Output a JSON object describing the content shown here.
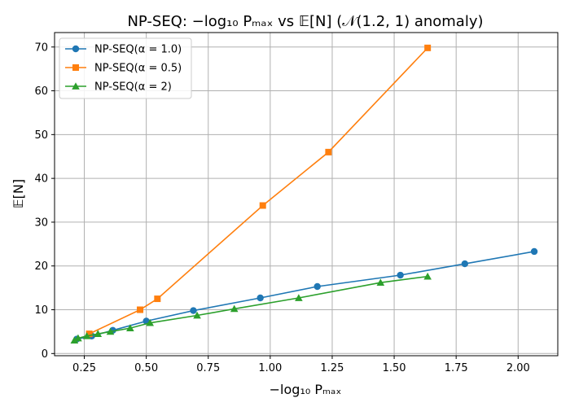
{
  "chart_data": {
    "type": "line",
    "title": "NP-SEQ: −log₁₀ Pₘₐₓ vs 𝔼[N] (𝒩(1.2, 1) anomaly)",
    "xlabel": "−log₁₀ Pₘₐₓ",
    "ylabel": "𝔼[N]",
    "xlim": [
      0.13,
      2.16
    ],
    "ylim": [
      -0.5,
      73.3
    ],
    "xticks": [
      0.25,
      0.5,
      0.75,
      1.0,
      1.25,
      1.5,
      1.75,
      2.0
    ],
    "xtick_labels": [
      "0.25",
      "0.50",
      "0.75",
      "1.00",
      "1.25",
      "1.50",
      "1.75",
      "2.00"
    ],
    "yticks": [
      0,
      10,
      20,
      30,
      40,
      50,
      60,
      70
    ],
    "ytick_labels": [
      "0",
      "10",
      "20",
      "30",
      "40",
      "50",
      "60",
      "70"
    ],
    "grid": true,
    "legend_position": "top-left",
    "series": [
      {
        "name": "NP-SEQ(α = 1.0)",
        "color": "#1f77b4",
        "marker": "circle",
        "x": [
          0.22,
          0.28,
          0.365,
          0.5,
          0.69,
          0.96,
          1.19,
          1.525,
          1.785,
          2.065
        ],
        "y": [
          3.3,
          4.0,
          5.3,
          7.4,
          9.8,
          12.7,
          15.3,
          17.9,
          20.5,
          23.3
        ]
      },
      {
        "name": "NP-SEQ(α = 0.5)",
        "color": "#ff7f0e",
        "marker": "square",
        "x": [
          0.27,
          0.475,
          0.545,
          0.97,
          1.235,
          1.635
        ],
        "y": [
          4.5,
          10.0,
          12.5,
          33.8,
          46.0,
          69.8
        ]
      },
      {
        "name": "NP-SEQ(α = 2)",
        "color": "#2ca02c",
        "marker": "triangle",
        "x": [
          0.21,
          0.225,
          0.26,
          0.305,
          0.355,
          0.435,
          0.515,
          0.705,
          0.855,
          1.115,
          1.445,
          1.635
        ],
        "y": [
          3.0,
          3.5,
          4.0,
          4.5,
          5.0,
          5.8,
          7.0,
          8.7,
          10.2,
          12.7,
          16.2,
          17.6
        ]
      }
    ]
  }
}
